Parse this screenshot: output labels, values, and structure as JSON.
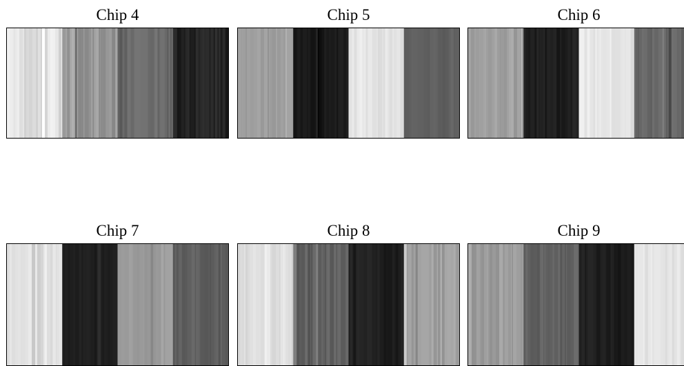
{
  "chart_data": [
    {
      "type": "heatmap",
      "title": "Chip 4",
      "colormap": "gray",
      "bands": [
        {
          "mean": 0.88,
          "jitter": 0.07
        },
        {
          "mean": 0.6,
          "jitter": 0.08
        },
        {
          "mean": 0.4,
          "jitter": 0.07
        },
        {
          "mean": 0.13,
          "jitter": 0.05
        }
      ]
    },
    {
      "type": "heatmap",
      "title": "Chip 5",
      "colormap": "gray",
      "bands": [
        {
          "mean": 0.62,
          "jitter": 0.03
        },
        {
          "mean": 0.1,
          "jitter": 0.03
        },
        {
          "mean": 0.89,
          "jitter": 0.03
        },
        {
          "mean": 0.38,
          "jitter": 0.02
        }
      ]
    },
    {
      "type": "heatmap",
      "title": "Chip 6",
      "colormap": "gray",
      "bands": [
        {
          "mean": 0.63,
          "jitter": 0.05
        },
        {
          "mean": 0.12,
          "jitter": 0.04
        },
        {
          "mean": 0.91,
          "jitter": 0.04
        },
        {
          "mean": 0.4,
          "jitter": 0.04
        }
      ]
    },
    {
      "type": "heatmap",
      "title": "Chip 7",
      "colormap": "gray",
      "bands": [
        {
          "mean": 0.88,
          "jitter": 0.04
        },
        {
          "mean": 0.12,
          "jitter": 0.02
        },
        {
          "mean": 0.62,
          "jitter": 0.04
        },
        {
          "mean": 0.37,
          "jitter": 0.04
        }
      ]
    },
    {
      "type": "heatmap",
      "title": "Chip 8",
      "colormap": "gray",
      "bands": [
        {
          "mean": 0.88,
          "jitter": 0.05
        },
        {
          "mean": 0.38,
          "jitter": 0.06
        },
        {
          "mean": 0.12,
          "jitter": 0.04
        },
        {
          "mean": 0.62,
          "jitter": 0.06
        }
      ]
    },
    {
      "type": "heatmap",
      "title": "Chip 9",
      "colormap": "gray",
      "bands": [
        {
          "mean": 0.62,
          "jitter": 0.06
        },
        {
          "mean": 0.38,
          "jitter": 0.05
        },
        {
          "mean": 0.11,
          "jitter": 0.04
        },
        {
          "mean": 0.9,
          "jitter": 0.04
        }
      ]
    }
  ]
}
